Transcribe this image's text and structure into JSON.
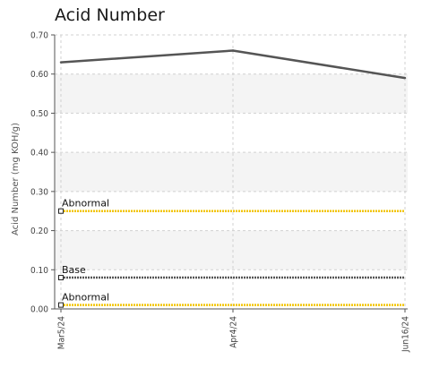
{
  "chart_data": {
    "type": "line",
    "title": "Acid Number",
    "ylabel": "Acid Number (mg KOH/g)",
    "xlabel": "",
    "ylim": [
      0,
      0.7
    ],
    "yticks": [
      "0.00",
      "0.10",
      "0.20",
      "0.30",
      "0.40",
      "0.50",
      "0.60",
      "0.70"
    ],
    "categories": [
      "Mar5/24",
      "Apr4/24",
      "Jun16/24"
    ],
    "series": [
      {
        "values": [
          0.63,
          0.66,
          0.59
        ],
        "color": "#555555"
      }
    ],
    "reference_lines": [
      {
        "label": "Abnormal",
        "value": 0.25,
        "color": "#f2c400"
      },
      {
        "label": "Base",
        "value": 0.08,
        "color": "#555555"
      },
      {
        "label": "Abnormal",
        "value": 0.01,
        "color": "#f2c400"
      }
    ],
    "grid": true
  }
}
